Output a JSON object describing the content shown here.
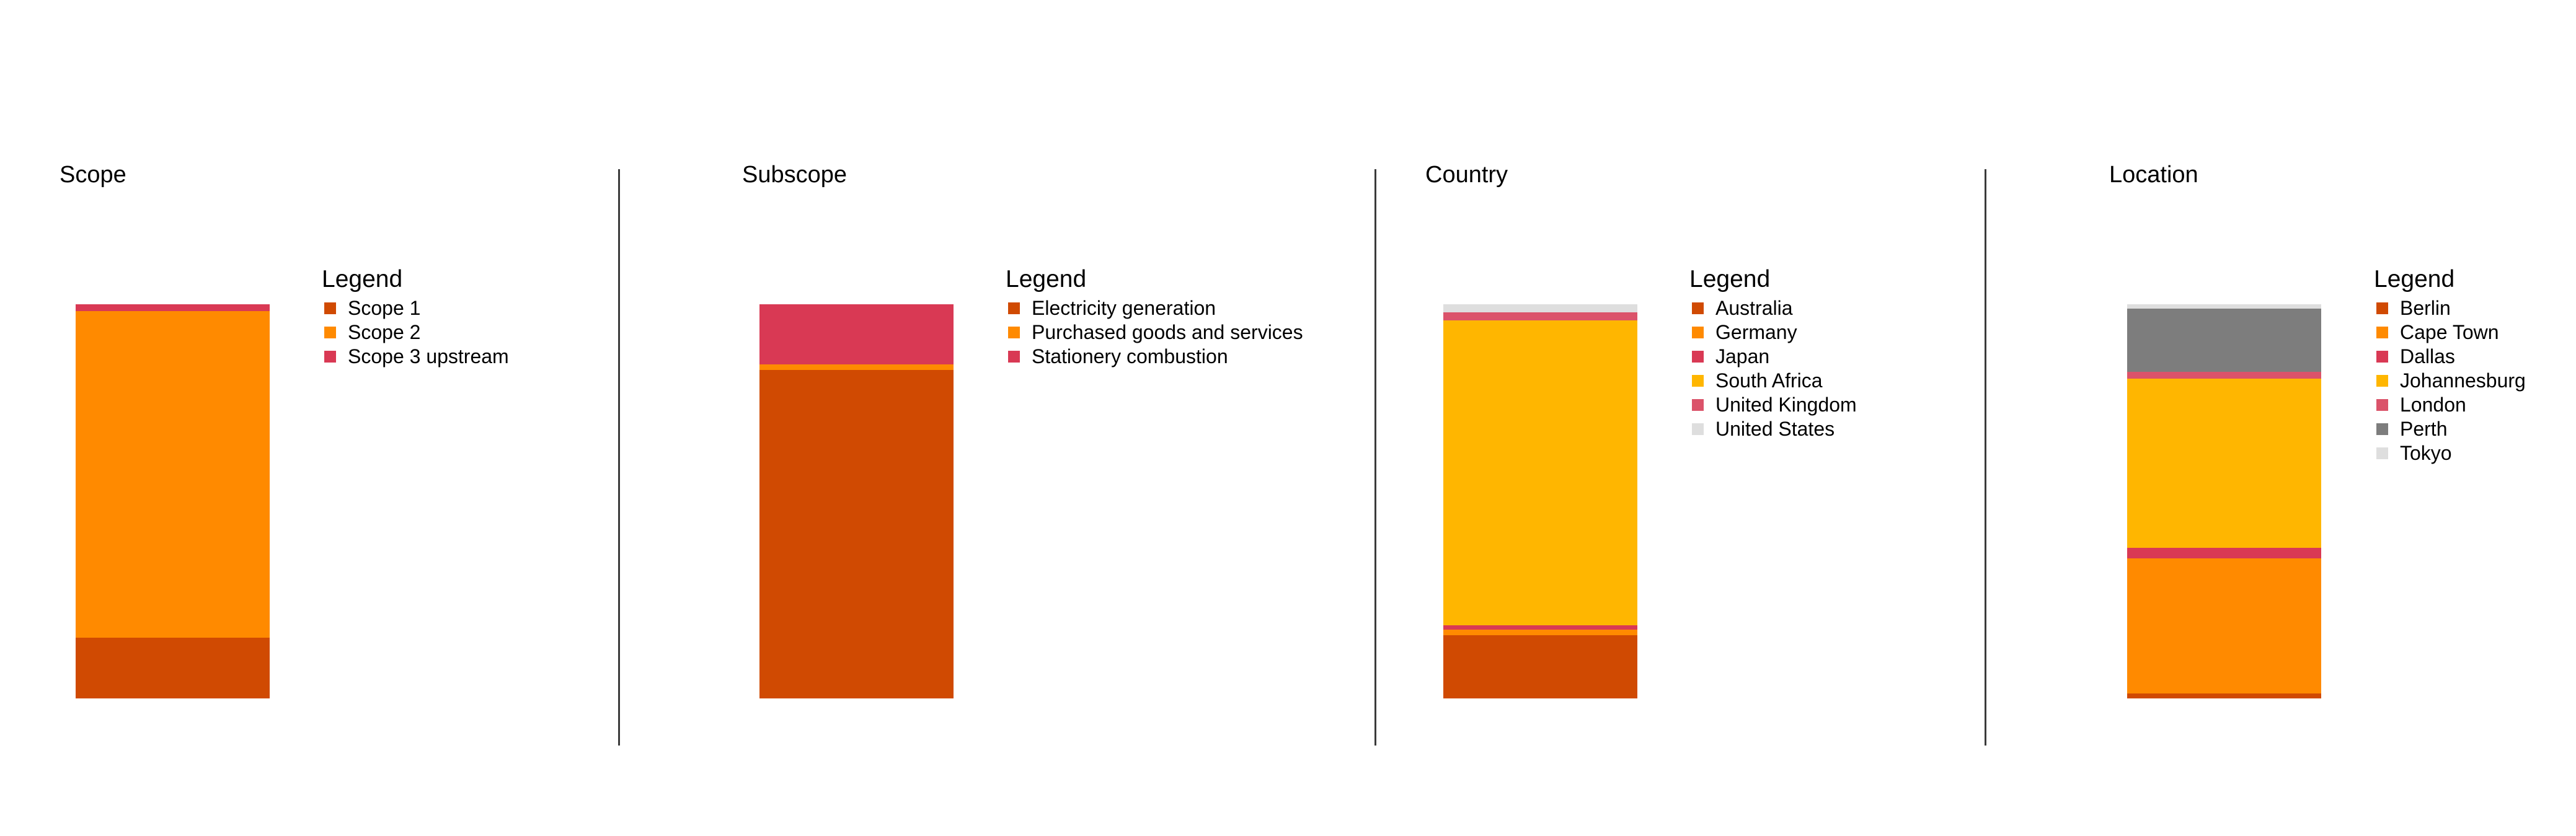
{
  "chart_data": [
    {
      "type": "bar",
      "stacked": true,
      "normalized": true,
      "title": "Scope",
      "legend_title": "Legend",
      "legend_position": "right",
      "grid": false,
      "axes_visible": false,
      "categories": [
        "Scope"
      ],
      "series": [
        {
          "name": "Scope 1",
          "color": "#D04A02",
          "values": [
            15.4
          ]
        },
        {
          "name": "Scope 2",
          "color": "#FF8A00",
          "values": [
            82.9
          ]
        },
        {
          "name": "Scope 3 upstream",
          "color": "#D93954",
          "values": [
            1.7
          ]
        }
      ],
      "unit": "% of total (estimated from bar heights)"
    },
    {
      "type": "bar",
      "stacked": true,
      "normalized": true,
      "title": "Subscope",
      "legend_title": "Legend",
      "legend_position": "right",
      "grid": false,
      "axes_visible": false,
      "categories": [
        "Subscope"
      ],
      "series": [
        {
          "name": "Electricity generation",
          "color": "#D04A02",
          "values": [
            83.3
          ]
        },
        {
          "name": "Purchased goods and services",
          "color": "#FF8A00",
          "values": [
            1.4
          ]
        },
        {
          "name": "Stationery combustion",
          "color": "#D93954",
          "values": [
            15.3
          ]
        }
      ],
      "unit": "% of total (estimated from bar heights)"
    },
    {
      "type": "bar",
      "stacked": true,
      "normalized": true,
      "title": "Country",
      "legend_title": "Legend",
      "legend_position": "right",
      "grid": false,
      "axes_visible": false,
      "categories": [
        "Country"
      ],
      "series": [
        {
          "name": "Australia",
          "color": "#D04A02",
          "values": [
            16.1
          ]
        },
        {
          "name": "Germany",
          "color": "#FF8A00",
          "values": [
            1.3
          ]
        },
        {
          "name": "Japan",
          "color": "#D93954",
          "values": [
            1.1
          ]
        },
        {
          "name": "South Africa",
          "color": "#FFB600",
          "values": [
            77.4
          ]
        },
        {
          "name": "United Kingdom",
          "color": "#DB536A",
          "values": [
            2.1
          ]
        },
        {
          "name": "United States",
          "color": "#DEDEDE",
          "values": [
            2.0
          ]
        }
      ],
      "unit": "% of total (estimated from bar heights)"
    },
    {
      "type": "bar",
      "stacked": true,
      "normalized": true,
      "title": "Location",
      "legend_title": "Legend",
      "legend_position": "right",
      "grid": false,
      "axes_visible": false,
      "categories": [
        "Location"
      ],
      "series": [
        {
          "name": "Berlin",
          "color": "#D04A02",
          "values": [
            1.3
          ]
        },
        {
          "name": "Cape Town",
          "color": "#FF8A00",
          "values": [
            34.2
          ]
        },
        {
          "name": "Dallas",
          "color": "#D93954",
          "values": [
            2.7
          ]
        },
        {
          "name": "Johannesburg",
          "color": "#FFB600",
          "values": [
            43.0
          ]
        },
        {
          "name": "London",
          "color": "#DB536A",
          "values": [
            1.6
          ]
        },
        {
          "name": "Perth",
          "color": "#7D7D7D",
          "values": [
            16.1
          ]
        },
        {
          "name": "Tokyo",
          "color": "#DEDEDE",
          "values": [
            1.1
          ]
        }
      ],
      "unit": "% of total (estimated from bar heights)"
    }
  ],
  "panels": [
    {
      "title": "Scope",
      "legend_title": "Legend",
      "items": [
        "Scope 1",
        "Scope 2",
        "Scope 3 upstream"
      ]
    },
    {
      "title": "Subscope",
      "legend_title": "Legend",
      "items": [
        "Electricity generation",
        "Purchased goods and services",
        "Stationery combustion"
      ]
    },
    {
      "title": "Country",
      "legend_title": "Legend",
      "items": [
        "Australia",
        "Germany",
        "Japan",
        "South Africa",
        "United Kingdom",
        "United States"
      ]
    },
    {
      "title": "Location",
      "legend_title": "Legend",
      "items": [
        "Berlin",
        "Cape Town",
        "Dallas",
        "Johannesburg",
        "London",
        "Perth",
        "Tokyo"
      ]
    }
  ],
  "colors": {
    "dark_orange": "#D04A02",
    "orange": "#FF8A00",
    "red": "#D93954",
    "yellow": "#FFB600",
    "pink": "#DB536A",
    "grey": "#7D7D7D",
    "light_grey": "#DEDEDE",
    "divider": "#3A3A3A"
  }
}
